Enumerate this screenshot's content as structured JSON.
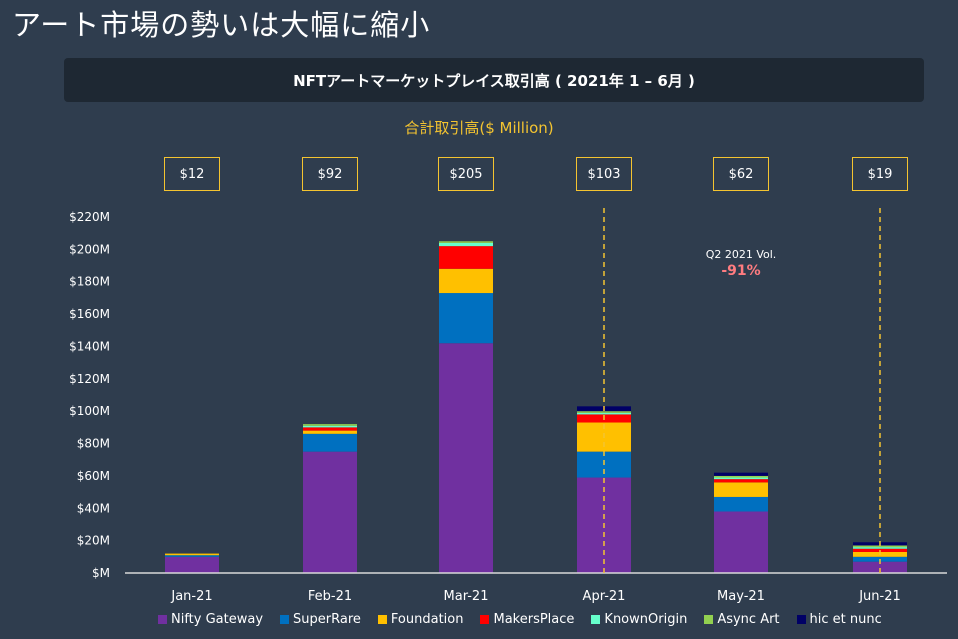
{
  "page_title": "アート市場の勢いは大幅に縮小",
  "banner_title": "NFTアートマーケットプレイス取引高 ( 2021年 1 – 6月 )",
  "total_label": "合計取引高($ Million)",
  "totals": [
    "$12",
    "$92",
    "$205",
    "$103",
    "$62",
    "$19"
  ],
  "annotation": {
    "line1": "Q2 2021 Vol.",
    "line2": "-91%"
  },
  "colors": {
    "Nifty Gateway": "#7030a0",
    "SuperRare": "#0070c0",
    "Foundation": "#ffc000",
    "MakersPlace": "#ff0000",
    "KnownOrigin": "#66ffcc",
    "Async Art": "#92d050",
    "hic et nunc": "#000066",
    "accent": "#f4c430",
    "annotation_red": "#ff7c80"
  },
  "chart_data": {
    "type": "bar",
    "stacked": true,
    "categories": [
      "Jan-21",
      "Feb-21",
      "Mar-21",
      "Apr-21",
      "May-21",
      "Jun-21"
    ],
    "series": [
      {
        "name": "Nifty Gateway",
        "values": [
          10,
          75,
          142,
          59,
          38,
          7
        ]
      },
      {
        "name": "SuperRare",
        "values": [
          1,
          11,
          31,
          16,
          9,
          3
        ]
      },
      {
        "name": "Foundation",
        "values": [
          1,
          2,
          15,
          18,
          9,
          3
        ]
      },
      {
        "name": "MakersPlace",
        "values": [
          0,
          2,
          14,
          5,
          2,
          2
        ]
      },
      {
        "name": "KnownOrigin",
        "values": [
          0,
          1,
          2,
          1,
          1,
          1
        ]
      },
      {
        "name": "Async Art",
        "values": [
          0,
          1,
          1,
          1,
          1,
          1
        ]
      },
      {
        "name": "hic et nunc",
        "values": [
          0,
          0,
          0,
          3,
          2,
          2
        ]
      }
    ],
    "yticks": [
      "$M",
      "$20M",
      "$40M",
      "$60M",
      "$80M",
      "$100M",
      "$120M",
      "$140M",
      "$160M",
      "$180M",
      "$200M",
      "$220M"
    ],
    "ylim": [
      0,
      220
    ],
    "dashed_lines_at": [
      "Apr-21",
      "Jun-21"
    ],
    "legend_position": "bottom",
    "grid": false
  }
}
